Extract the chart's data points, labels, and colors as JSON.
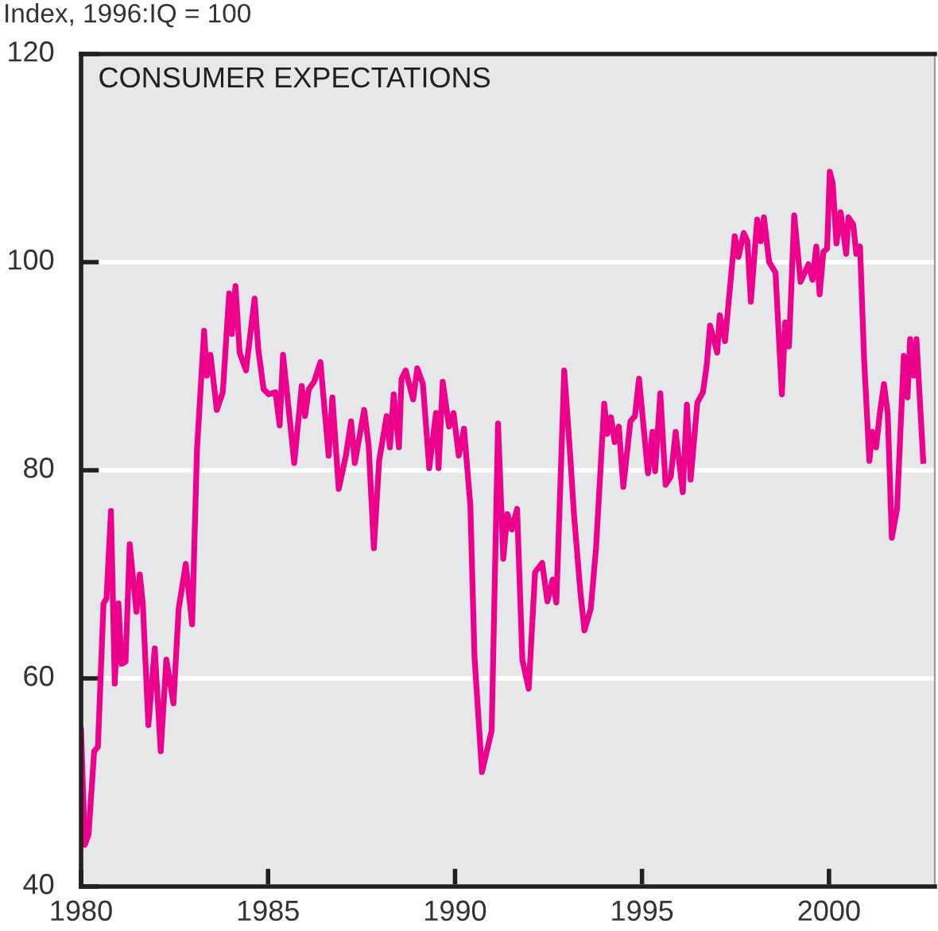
{
  "chart_data": {
    "type": "line",
    "title": "CONSUMER EXPECTATIONS",
    "ylabel": "Index, 1996:IQ = 100",
    "xlim": [
      1980,
      2002.83
    ],
    "xticks": [
      1980,
      1985,
      1990,
      1995,
      2000
    ],
    "ylim": [
      40,
      120
    ],
    "yticks": [
      40,
      60,
      80,
      100,
      120
    ],
    "grid": "y",
    "marker": "none",
    "line_style": "solid",
    "series": [
      {
        "color": "#ec008c",
        "x": [
          1980.0,
          1980.1,
          1980.2,
          1980.35,
          1980.45,
          1980.6,
          1980.68,
          1980.8,
          1980.9,
          1981.0,
          1981.08,
          1981.19,
          1981.3,
          1981.48,
          1981.57,
          1981.65,
          1981.8,
          1981.97,
          1982.13,
          1982.28,
          1982.47,
          1982.61,
          1982.8,
          1982.97,
          1983.1,
          1983.29,
          1983.36,
          1983.46,
          1983.63,
          1983.79,
          1983.96,
          1984.03,
          1984.13,
          1984.24,
          1984.41,
          1984.64,
          1984.74,
          1984.88,
          1985.02,
          1985.2,
          1985.31,
          1985.4,
          1985.52,
          1985.7,
          1985.9,
          1985.99,
          1986.09,
          1986.23,
          1986.4,
          1986.62,
          1986.72,
          1986.89,
          1987.08,
          1987.22,
          1987.32,
          1987.57,
          1987.69,
          1987.83,
          1987.97,
          1988.17,
          1988.26,
          1988.36,
          1988.5,
          1988.57,
          1988.68,
          1988.88,
          1988.99,
          1989.14,
          1989.31,
          1989.49,
          1989.56,
          1989.67,
          1989.84,
          1989.96,
          1990.1,
          1990.24,
          1990.41,
          1990.52,
          1990.72,
          1990.98,
          1991.15,
          1991.29,
          1991.4,
          1991.52,
          1991.66,
          1991.8,
          1991.97,
          1992.14,
          1992.33,
          1992.47,
          1992.61,
          1992.71,
          1992.92,
          1993.08,
          1993.18,
          1993.35,
          1993.46,
          1993.63,
          1993.77,
          1993.99,
          1994.07,
          1994.17,
          1994.27,
          1994.38,
          1994.5,
          1994.69,
          1994.81,
          1994.92,
          1995.16,
          1995.28,
          1995.35,
          1995.49,
          1995.63,
          1995.77,
          1995.9,
          1996.09,
          1996.2,
          1996.3,
          1996.48,
          1996.63,
          1996.73,
          1996.82,
          1997.01,
          1997.08,
          1997.22,
          1997.48,
          1997.58,
          1997.72,
          1997.82,
          1997.91,
          1998.08,
          1998.18,
          1998.26,
          1998.4,
          1998.57,
          1998.74,
          1998.83,
          1998.93,
          1999.07,
          1999.24,
          1999.45,
          1999.56,
          1999.66,
          1999.75,
          1999.85,
          1999.95,
          2000.02,
          2000.1,
          2000.2,
          2000.31,
          2000.46,
          2000.52,
          2000.65,
          2000.73,
          2000.83,
          2000.94,
          2001.08,
          2001.16,
          2001.26,
          2001.36,
          2001.47,
          2001.57,
          2001.68,
          2001.82,
          2002.0,
          2002.1,
          2002.17,
          2002.27,
          2002.34,
          2002.52
        ],
        "values": [
          55.0,
          44.0,
          45.0,
          53.0,
          53.4,
          67.2,
          67.7,
          76.1,
          59.5,
          67.2,
          61.4,
          61.6,
          72.9,
          66.4,
          70.0,
          67.2,
          55.5,
          62.9,
          53.0,
          61.8,
          57.6,
          66.7,
          71.0,
          65.2,
          82.0,
          93.4,
          89.1,
          91.1,
          85.8,
          87.5,
          97.0,
          93.1,
          97.7,
          91.3,
          89.6,
          96.5,
          91.6,
          87.8,
          87.3,
          87.5,
          84.3,
          91.1,
          87.0,
          80.7,
          88.1,
          85.2,
          87.8,
          88.5,
          90.4,
          81.4,
          87.0,
          78.2,
          81.4,
          84.7,
          80.7,
          85.8,
          82.4,
          72.5,
          80.9,
          85.2,
          82.2,
          87.3,
          82.2,
          88.8,
          89.6,
          86.8,
          89.8,
          88.3,
          80.2,
          85.5,
          80.2,
          88.5,
          84.2,
          85.5,
          81.4,
          84.0,
          76.6,
          62.1,
          51.0,
          55.0,
          84.5,
          71.5,
          75.8,
          74.3,
          76.3,
          61.8,
          59.0,
          70.2,
          71.1,
          67.4,
          69.5,
          67.3,
          89.6,
          81.4,
          75.8,
          68.4,
          64.6,
          66.7,
          72.5,
          86.4,
          83.5,
          85.1,
          82.7,
          84.2,
          78.4,
          84.7,
          85.2,
          88.8,
          79.7,
          83.7,
          79.9,
          87.4,
          78.6,
          79.4,
          83.7,
          77.9,
          86.3,
          79.1,
          86.5,
          87.5,
          90.1,
          93.9,
          91.3,
          94.9,
          92.4,
          102.5,
          100.5,
          102.8,
          102.0,
          96.2,
          104.1,
          102.0,
          104.3,
          100.0,
          99.0,
          87.3,
          94.2,
          91.9,
          104.5,
          98.1,
          99.8,
          98.3,
          101.5,
          96.9,
          101.0,
          101.3,
          108.7,
          107.6,
          101.8,
          104.8,
          100.8,
          104.3,
          103.6,
          100.8,
          101.5,
          90.6,
          80.9,
          83.7,
          82.2,
          85.5,
          88.3,
          85.5,
          73.5,
          76.3,
          91.0,
          87.0,
          92.6,
          89.1,
          92.6,
          80.9
        ]
      }
    ]
  }
}
